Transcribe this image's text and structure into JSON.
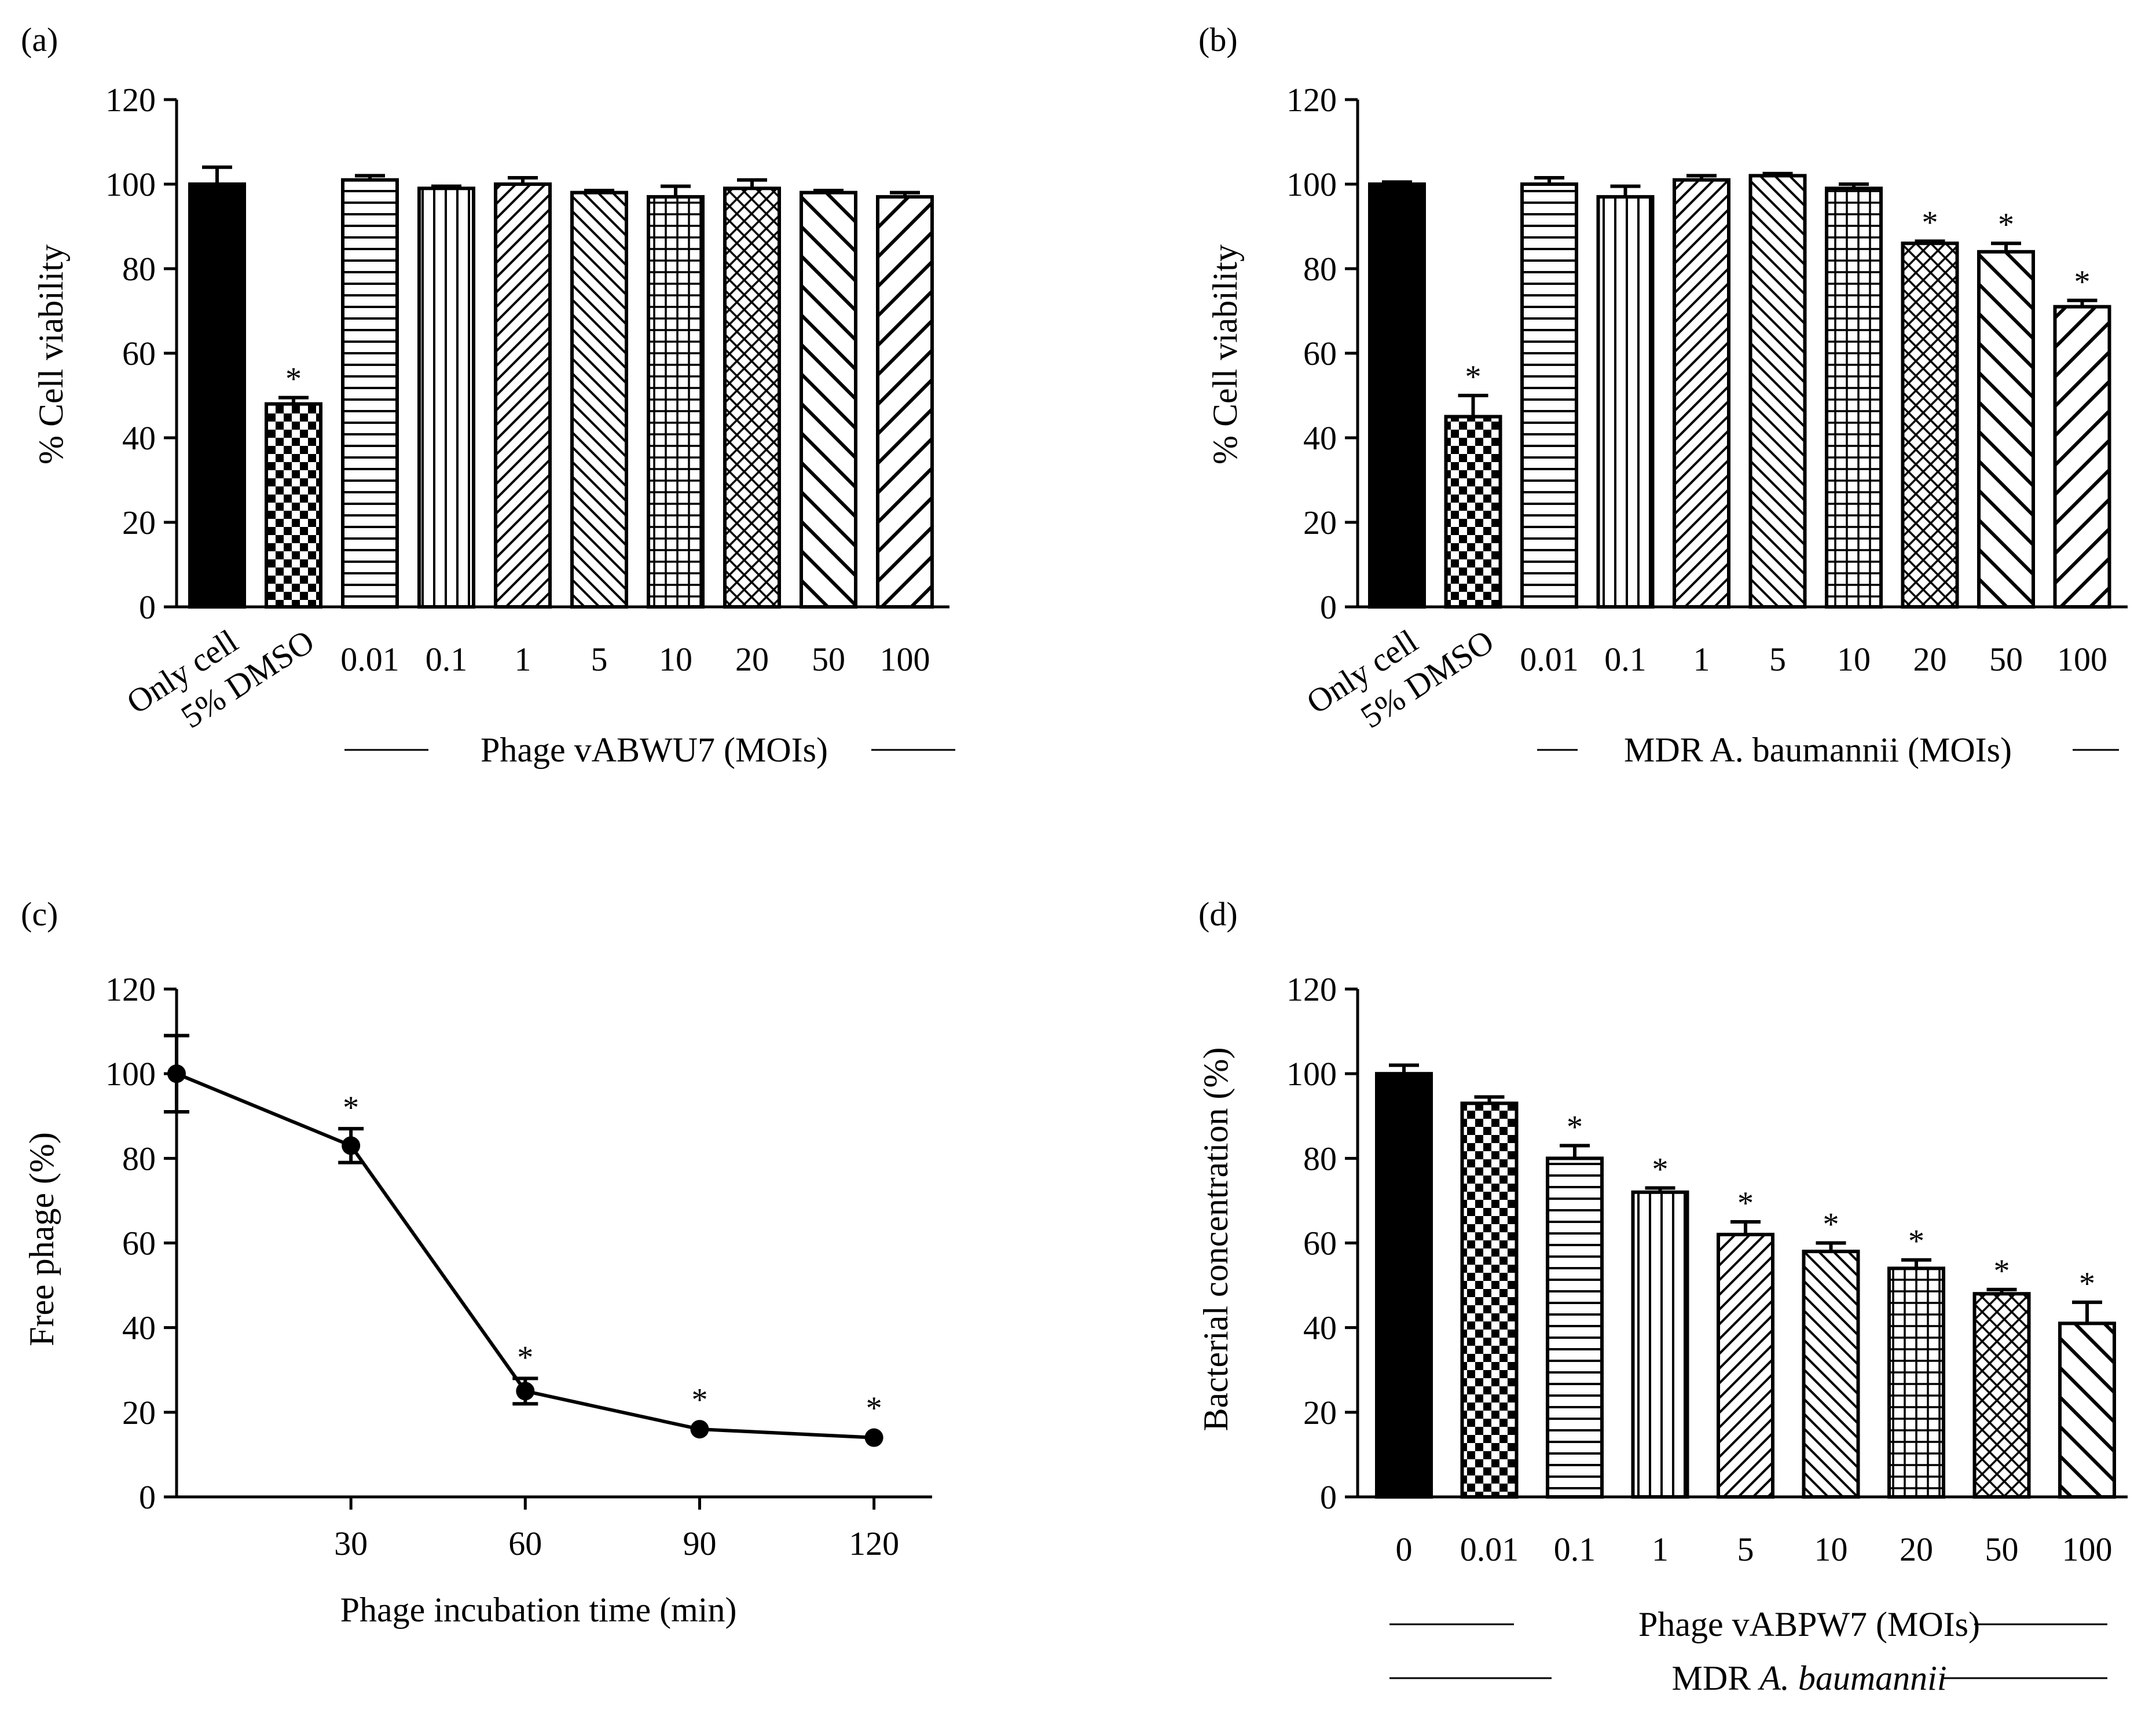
{
  "chart_data": [
    {
      "panel": "(a)",
      "type": "bar",
      "ylabel": "% Cell viability",
      "ylim": [
        0,
        120
      ],
      "yticks": [
        0,
        20,
        40,
        60,
        80,
        100,
        120
      ],
      "categories": [
        "Only cell",
        "5% DMSO",
        "0.01",
        "0.1",
        "1",
        "5",
        "10",
        "20",
        "50",
        "100"
      ],
      "values": [
        100,
        48,
        101,
        99,
        100,
        98,
        97,
        99,
        98,
        97
      ],
      "errors": [
        4,
        1.5,
        1,
        0.5,
        1.5,
        0.5,
        2.5,
        2,
        0.5,
        1
      ],
      "significant": [
        false,
        true,
        false,
        false,
        false,
        false,
        false,
        false,
        false,
        false
      ],
      "patterns": [
        "solid",
        "checker",
        "hlines",
        "vlines",
        "diag-up-fine",
        "diag-down-fine",
        "grid",
        "crosshatch",
        "diag-down-wide",
        "diag-up-wide"
      ],
      "group_label": "Phage vABWU7 (MOIs)"
    },
    {
      "panel": "(b)",
      "type": "bar",
      "ylabel": "% Cell viability",
      "ylim": [
        0,
        120
      ],
      "yticks": [
        0,
        20,
        40,
        60,
        80,
        100,
        120
      ],
      "categories": [
        "Only cell",
        "5% DMSO",
        "0.01",
        "0.1",
        "1",
        "5",
        "10",
        "20",
        "50",
        "100"
      ],
      "values": [
        100,
        45,
        100,
        97,
        101,
        102,
        99,
        86,
        84,
        71
      ],
      "errors": [
        0.5,
        5,
        1.5,
        2.5,
        1,
        0.5,
        1,
        0.5,
        2,
        1.5
      ],
      "significant": [
        false,
        true,
        false,
        false,
        false,
        false,
        false,
        true,
        true,
        true
      ],
      "patterns": [
        "solid",
        "checker",
        "hlines",
        "vlines",
        "diag-up-fine",
        "diag-down-fine",
        "grid",
        "crosshatch",
        "diag-down-wide",
        "diag-up-wide"
      ],
      "group_label": "MDR A. baumannii (MOIs)"
    },
    {
      "panel": "(c)",
      "type": "line",
      "xlabel": "Phage incubation time (min)",
      "ylabel": "Free phage (%)",
      "ylim": [
        0,
        120
      ],
      "yticks": [
        0,
        20,
        40,
        60,
        80,
        100,
        120
      ],
      "xlim": [
        0,
        130
      ],
      "xticks": [
        30,
        60,
        90,
        120
      ],
      "x": [
        0,
        30,
        60,
        90,
        120
      ],
      "y": [
        100,
        83,
        25,
        16,
        14
      ],
      "errors": [
        9,
        4,
        3,
        0.5,
        0.5
      ],
      "significant": [
        false,
        true,
        true,
        true,
        true
      ]
    },
    {
      "panel": "(d)",
      "type": "bar",
      "ylabel": "Bacterial concentration (%)",
      "ylim": [
        0,
        120
      ],
      "yticks": [
        0,
        20,
        40,
        60,
        80,
        100,
        120
      ],
      "categories": [
        "0",
        "0.01",
        "0.1",
        "1",
        "5",
        "10",
        "20",
        "50",
        "100"
      ],
      "values": [
        100,
        93,
        80,
        72,
        62,
        58,
        54,
        48,
        41
      ],
      "errors": [
        2,
        1.5,
        3,
        1,
        3,
        2,
        2,
        1,
        5
      ],
      "significant": [
        false,
        false,
        true,
        true,
        true,
        true,
        true,
        true,
        true
      ],
      "patterns": [
        "solid",
        "checker",
        "hlines",
        "vlines",
        "diag-up-fine",
        "diag-down-fine",
        "grid",
        "crosshatch",
        "diag-down-wide"
      ],
      "group_label": "Phage vABPW7 (MOIs)",
      "group_label2_prefix": "MDR ",
      "group_label2_italic": "A. baumannii"
    }
  ]
}
